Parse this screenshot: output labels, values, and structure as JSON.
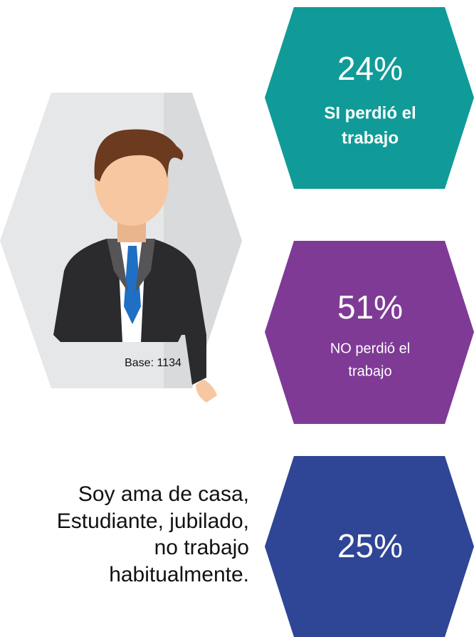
{
  "stats": [
    {
      "value": "24%",
      "label": [
        "SI perdió el",
        "trabajo"
      ]
    },
    {
      "value": "51%",
      "label": [
        "NO perdió el",
        "trabajo"
      ]
    },
    {
      "value": "25%",
      "label": [
        "Soy ama de casa,",
        "Estudiante, jubilado,",
        "no trabajo",
        "habitualmente."
      ]
    }
  ],
  "base": "Base: 1134"
}
